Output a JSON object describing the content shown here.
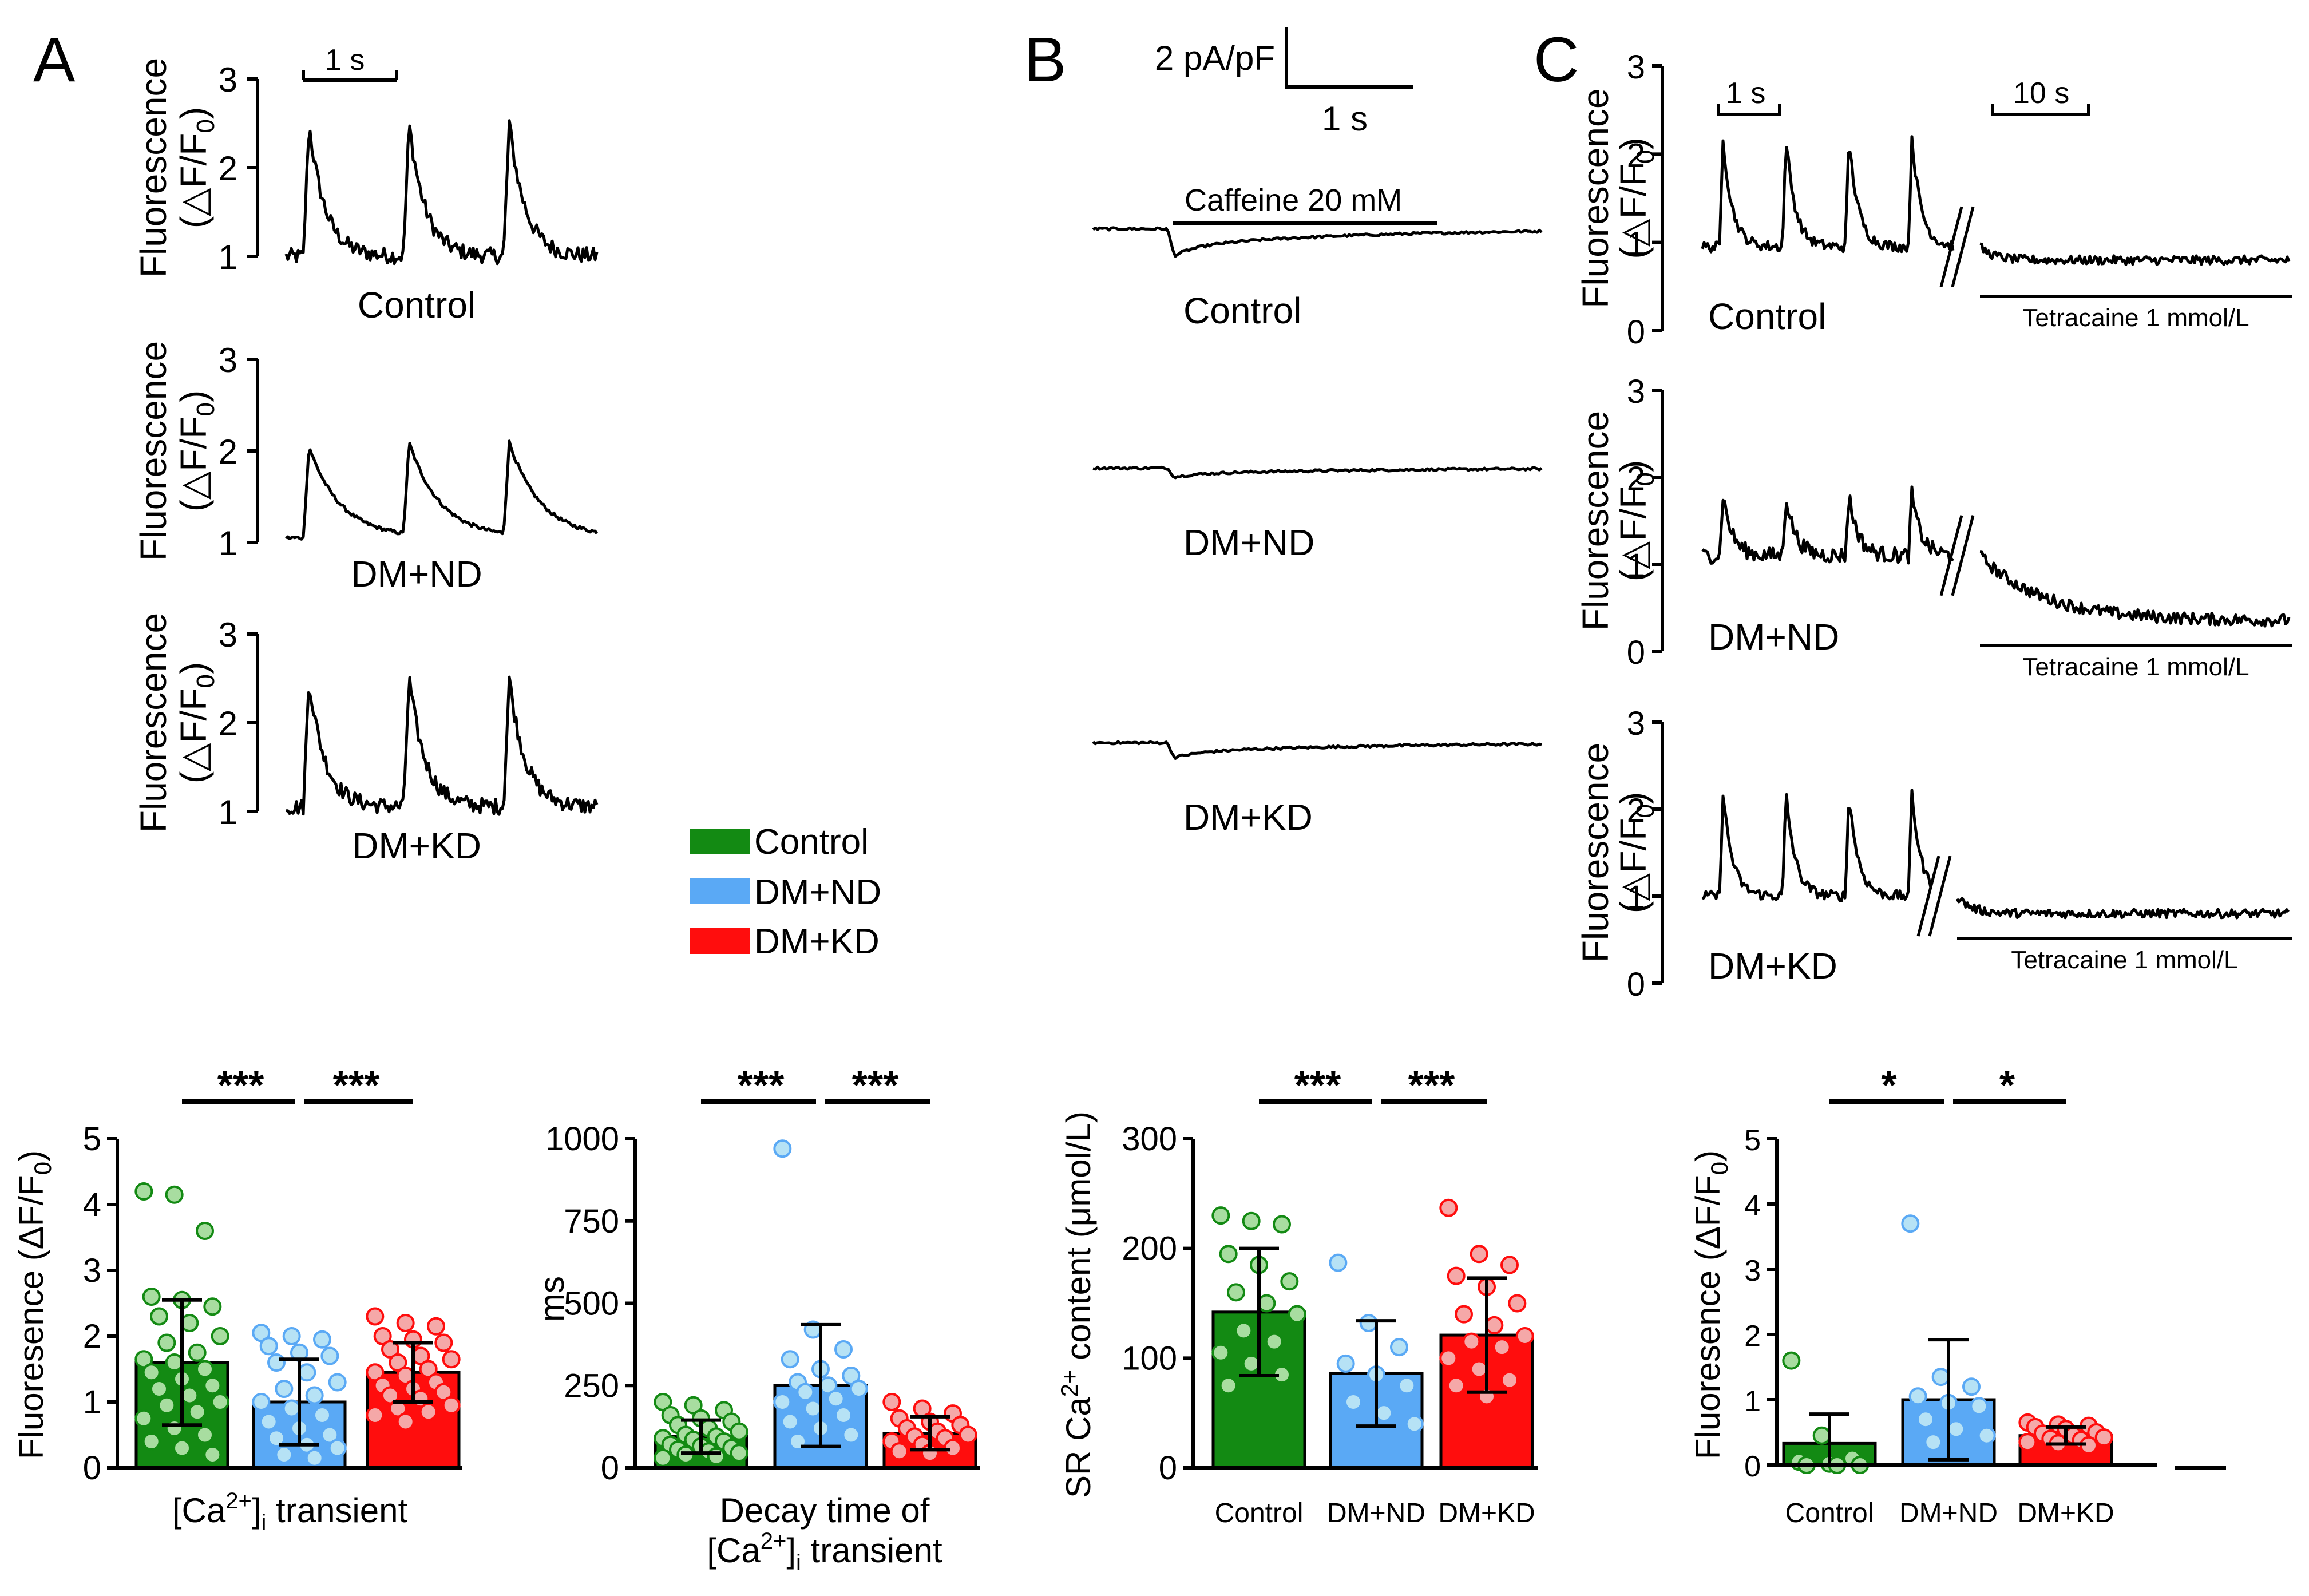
{
  "panel_letters": {
    "A": "A",
    "B": "B",
    "C": "C"
  },
  "colors": {
    "Control": "#138a13",
    "DM+ND": "#5aa9f5",
    "DM+KD": "#ff0d0d",
    "Control_pt": "#a8dda0",
    "DM+ND_pt": "#b6e2f5",
    "DM+KD_pt": "#f5a8a8"
  },
  "groups": [
    "Control",
    "DM+ND",
    "DM+KD"
  ],
  "legend": {
    "items": [
      "Control",
      "DM+ND",
      "DM+KD"
    ]
  },
  "panelA": {
    "ylabel_line1": "Fluorescence",
    "ylabel_line2": "(△F/F",
    "ylabel_sub": "0",
    "ylabel_end": ")",
    "yticks": [
      "1",
      "2",
      "3"
    ],
    "scalebar_label": "1 s",
    "traces": [
      {
        "label": "Control",
        "baseline": 1.0,
        "peak": 2.5
      },
      {
        "label": "DM+ND",
        "baseline": 1.05,
        "peak": 2.05
      },
      {
        "label": "DM+KD",
        "baseline": 1.05,
        "peak": 2.5
      }
    ]
  },
  "panelB": {
    "scale_y_label": "2 pA/pF",
    "scale_x_label": "1 s",
    "caffeine_label": "Caffeine 20 mM",
    "traces": [
      {
        "label": "Control",
        "dip_pApF": -0.9
      },
      {
        "label": "DM+ND",
        "dip_pApF": -0.3
      },
      {
        "label": "DM+KD",
        "dip_pApF": -0.5
      }
    ]
  },
  "panelC": {
    "ylabel_line1": "Fluorescence",
    "ylabel_line2": "(△F/F",
    "ylabel_sub": "0",
    "ylabel_end": ")",
    "yticks": [
      "0",
      "1",
      "2",
      "3"
    ],
    "scalebar1_label": "1 s",
    "scalebar2_label": "10 s",
    "tetracaine_label": "Tetracaine 1 mmol/L",
    "traces": [
      {
        "label": "Control",
        "baseline": 0.95,
        "peak": 2.2,
        "after": 0.8
      },
      {
        "label": "DM+ND",
        "baseline": 1.1,
        "peak": 1.8,
        "after": 0.35
      },
      {
        "label": "DM+KD",
        "baseline": 1.0,
        "peak": 2.2,
        "after": 0.8
      }
    ]
  },
  "chart_data": [
    {
      "type": "bar",
      "id": "transient_amplitude",
      "title": "",
      "xlabel_main": "[Ca",
      "xlabel_sup": "2+",
      "xlabel_after": "]",
      "xlabel_sub": "i",
      "xlabel_end": " transient",
      "ylabel": "Fluoresence (ΔF/F",
      "ylabel_sub": "0",
      "ylabel_end": ")",
      "ylim": [
        0,
        5
      ],
      "yticks": [
        "0",
        "1",
        "2",
        "3",
        "4",
        "5"
      ],
      "categories": [
        "Control",
        "DM+ND",
        "DM+KD"
      ],
      "show_category_labels": false,
      "values": [
        1.6,
        1.0,
        1.45
      ],
      "sd": [
        0.95,
        0.65,
        0.45
      ],
      "points": [
        [
          4.2,
          4.15,
          3.6,
          2.6,
          2.55,
          2.45,
          2.3,
          2.2,
          2.0,
          1.9,
          1.75,
          1.65,
          1.6,
          1.5,
          1.45,
          1.35,
          1.25,
          1.2,
          1.1,
          1.0,
          0.95,
          0.85,
          0.75,
          0.6,
          0.5,
          0.4,
          0.3,
          0.2
        ],
        [
          2.05,
          2.0,
          1.95,
          1.85,
          1.75,
          1.7,
          1.6,
          1.45,
          1.3,
          1.2,
          1.1,
          1.0,
          0.9,
          0.8,
          0.7,
          0.6,
          0.5,
          0.45,
          0.35,
          0.3,
          0.2,
          0.15
        ],
        [
          2.3,
          2.2,
          2.15,
          2.0,
          1.95,
          1.9,
          1.8,
          1.7,
          1.65,
          1.6,
          1.5,
          1.45,
          1.4,
          1.3,
          1.25,
          1.2,
          1.15,
          1.1,
          1.05,
          0.95,
          0.9,
          0.85,
          0.8,
          0.7
        ]
      ],
      "significance": [
        "***",
        "***"
      ]
    },
    {
      "type": "bar",
      "id": "decay_time",
      "xlabel_line1": "Decay time of",
      "xlabel_main": "[Ca",
      "xlabel_sup": "2+",
      "xlabel_after": "]",
      "xlabel_sub": "i",
      "xlabel_end": " transient",
      "ylabel": "ms",
      "ylim": [
        0,
        1000
      ],
      "yticks": [
        "0",
        "250",
        "500",
        "750",
        "1000"
      ],
      "categories": [
        "Control",
        "DM+ND",
        "DM+KD"
      ],
      "show_category_labels": false,
      "values": [
        95,
        250,
        105
      ],
      "sd": [
        50,
        185,
        50
      ],
      "points": [
        [
          200,
          190,
          175,
          160,
          150,
          140,
          130,
          120,
          110,
          100,
          95,
          90,
          85,
          80,
          70,
          65,
          60,
          55,
          50,
          45,
          40,
          35,
          30
        ],
        [
          970,
          420,
          360,
          330,
          300,
          280,
          260,
          250,
          240,
          230,
          210,
          200,
          180,
          160,
          140,
          120,
          100,
          80
        ],
        [
          200,
          180,
          165,
          150,
          140,
          130,
          120,
          110,
          100,
          95,
          90,
          80,
          70,
          60,
          50,
          45
        ]
      ],
      "significance": [
        "***",
        "***"
      ]
    },
    {
      "type": "bar",
      "id": "sr_content",
      "ylabel": "SR Ca",
      "ylabel_sup": "2+",
      "ylabel_end": " content (μmol/L)",
      "ylim": [
        0,
        300
      ],
      "yticks": [
        "0",
        "100",
        "200",
        "300"
      ],
      "categories": [
        "Control",
        "DM+ND",
        "DM+KD"
      ],
      "show_category_labels": true,
      "values": [
        142,
        86,
        121
      ],
      "sd": [
        58,
        48,
        52
      ],
      "points": [
        [
          230,
          225,
          222,
          195,
          185,
          170,
          160,
          150,
          140,
          125,
          115,
          105,
          95,
          85,
          75
        ],
        [
          187,
          132,
          110,
          95,
          85,
          75,
          60,
          50,
          40
        ],
        [
          237,
          195,
          185,
          175,
          165,
          150,
          140,
          130,
          120,
          115,
          110,
          100,
          90,
          80,
          75,
          65
        ]
      ],
      "significance": [
        "***",
        "***"
      ]
    },
    {
      "type": "bar",
      "id": "tetracaine_leak",
      "ylabel": "Fluoresence (ΔF/F",
      "ylabel_sub": "0",
      "ylabel_end": ")",
      "ylim": [
        0,
        5
      ],
      "yticks": [
        "0",
        "1",
        "2",
        "3",
        "4",
        "5"
      ],
      "categories": [
        "Control",
        "DM+ND",
        "DM+KD"
      ],
      "show_category_labels": true,
      "values": [
        0.33,
        1.0,
        0.45
      ],
      "sd": [
        0.45,
        0.92,
        0.13
      ],
      "points": [
        [
          1.6,
          0.45,
          0.1,
          0.05,
          0.02,
          0.0,
          0.0,
          0.0
        ],
        [
          3.7,
          1.35,
          1.2,
          1.05,
          0.95,
          0.9,
          0.7,
          0.55,
          0.45,
          0.35
        ],
        [
          0.65,
          0.62,
          0.6,
          0.58,
          0.55,
          0.5,
          0.48,
          0.45,
          0.42,
          0.4,
          0.38,
          0.35,
          0.33,
          0.3
        ]
      ],
      "significance": [
        "*",
        "*"
      ]
    }
  ]
}
